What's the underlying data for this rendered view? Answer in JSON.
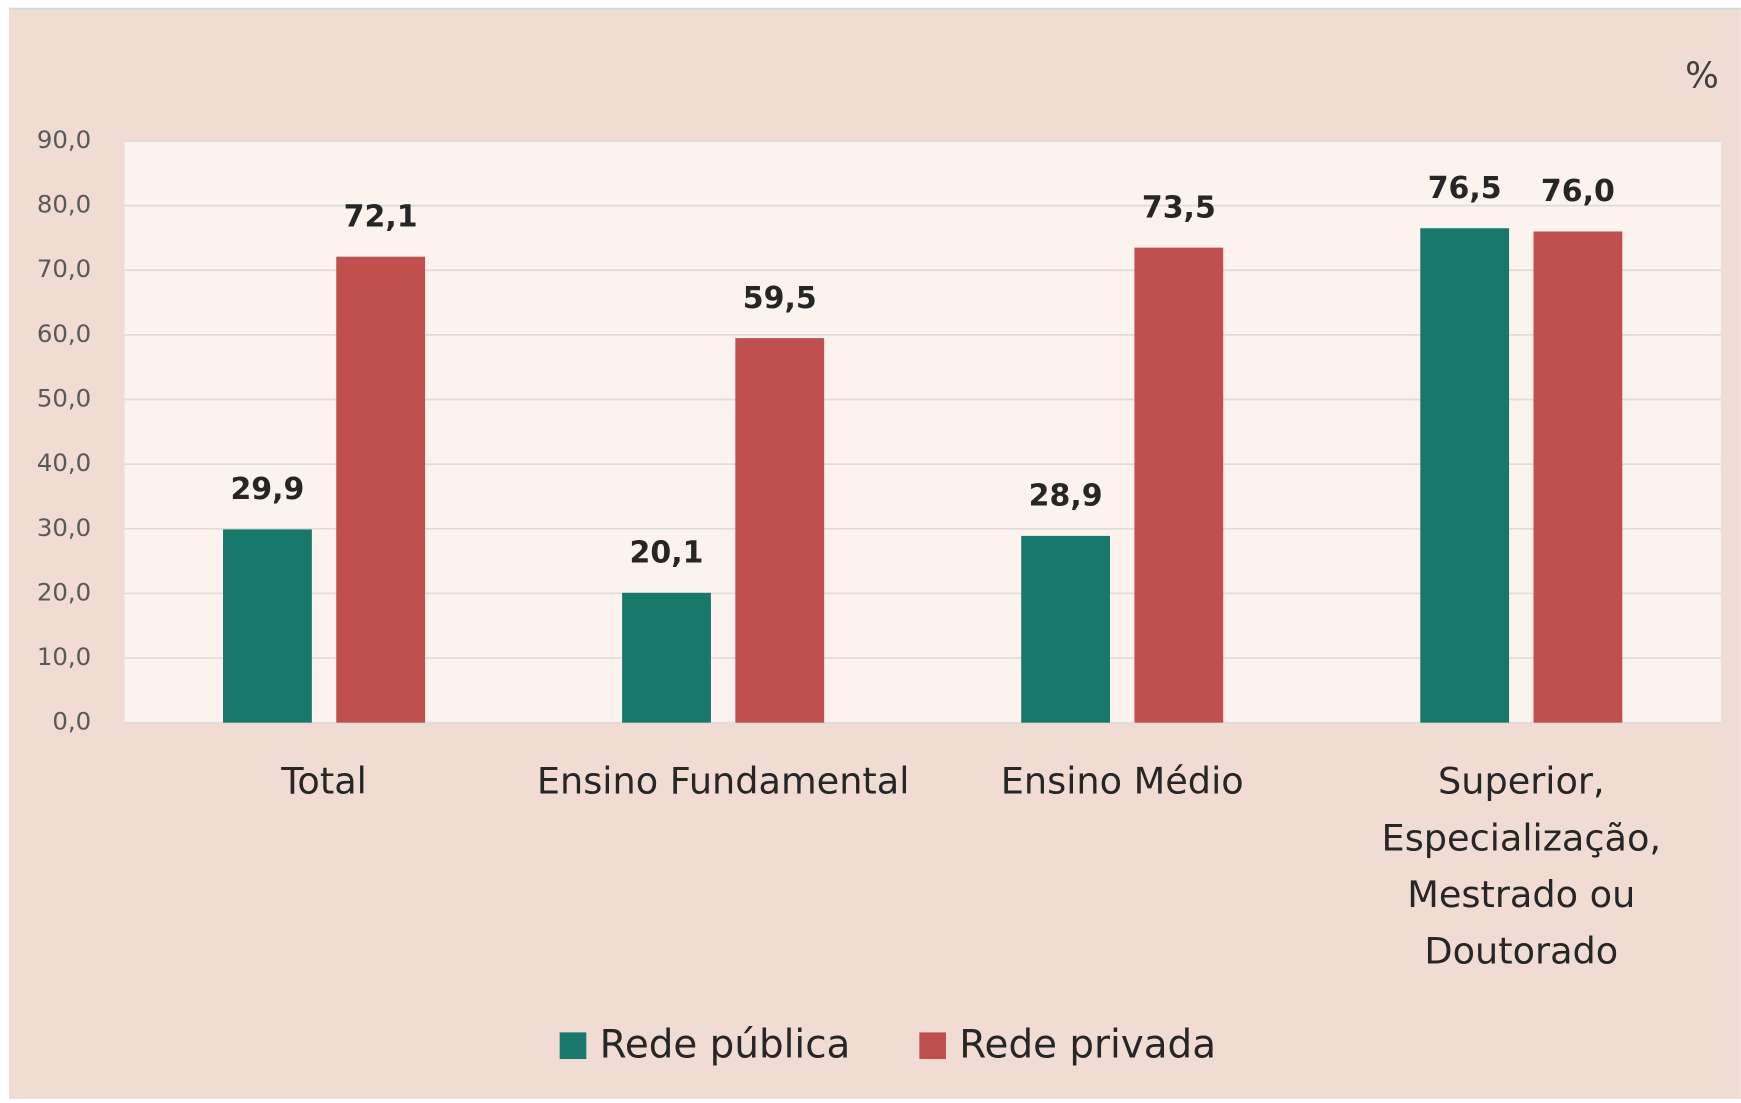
{
  "chart_data": {
    "type": "bar",
    "unit_label": "%",
    "categories": [
      "Total",
      "Ensino Fundamental",
      "Ensino Médio",
      "Superior, Especialização, Mestrado ou Doutorado"
    ],
    "series": [
      {
        "name": "Rede pública",
        "color": "#17786b",
        "values": [
          29.9,
          20.1,
          28.9,
          76.5
        ],
        "value_labels": [
          "29,9",
          "20,1",
          "28,9",
          "76,5"
        ]
      },
      {
        "name": "Rede privada",
        "color": "#c0504d",
        "values": [
          72.1,
          59.5,
          73.5,
          76.0
        ],
        "value_labels": [
          "72,1",
          "59,5",
          "73,5",
          "76,0"
        ]
      }
    ],
    "ylim": [
      0,
      90
    ],
    "yticks": [
      {
        "value": 0,
        "label": "0,0"
      },
      {
        "value": 10,
        "label": "10,0"
      },
      {
        "value": 20,
        "label": "20,0"
      },
      {
        "value": 30,
        "label": "30,0"
      },
      {
        "value": 40,
        "label": "40,0"
      },
      {
        "value": 50,
        "label": "50,0"
      },
      {
        "value": 60,
        "label": "60,0"
      },
      {
        "value": 70,
        "label": "70,0"
      },
      {
        "value": 80,
        "label": "80,0"
      },
      {
        "value": 90,
        "label": "90,0"
      }
    ],
    "grid": true,
    "legend": "bottom"
  }
}
